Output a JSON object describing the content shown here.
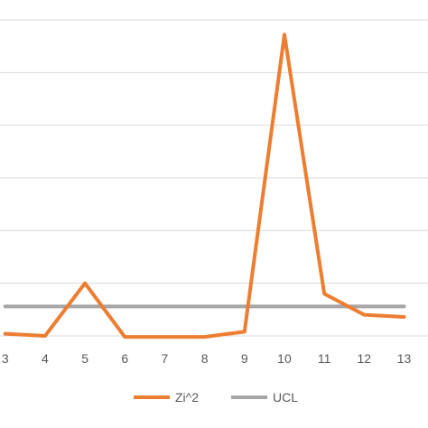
{
  "chart_data": {
    "type": "line",
    "categories": [
      "3",
      "4",
      "5",
      "6",
      "7",
      "8",
      "9",
      "10",
      "11",
      "12",
      "13"
    ],
    "x": [
      3,
      4,
      5,
      6,
      7,
      8,
      9,
      10,
      11,
      12,
      13
    ],
    "series": [
      {
        "name": "Zi^2",
        "color": "#ED7D31",
        "values": [
          0.1,
          0.0,
          2.5,
          -0.05,
          -0.05,
          -0.05,
          0.2,
          14.3,
          2.0,
          1.0,
          0.9
        ]
      },
      {
        "name": "UCL",
        "color": "#A5A5A5",
        "values": [
          1.4,
          1.4,
          1.4,
          1.4,
          1.4,
          1.4,
          1.4,
          1.4,
          1.4,
          1.4,
          1.4
        ]
      }
    ],
    "x_range": [
      2.87,
      13.6
    ],
    "ylim": [
      0,
      15
    ],
    "grid_lines": [
      0,
      2.5,
      5,
      7.5,
      10,
      12.5,
      15
    ],
    "grid": true,
    "legend_position": "bottom",
    "gridline_color": "#D9D9D9"
  }
}
